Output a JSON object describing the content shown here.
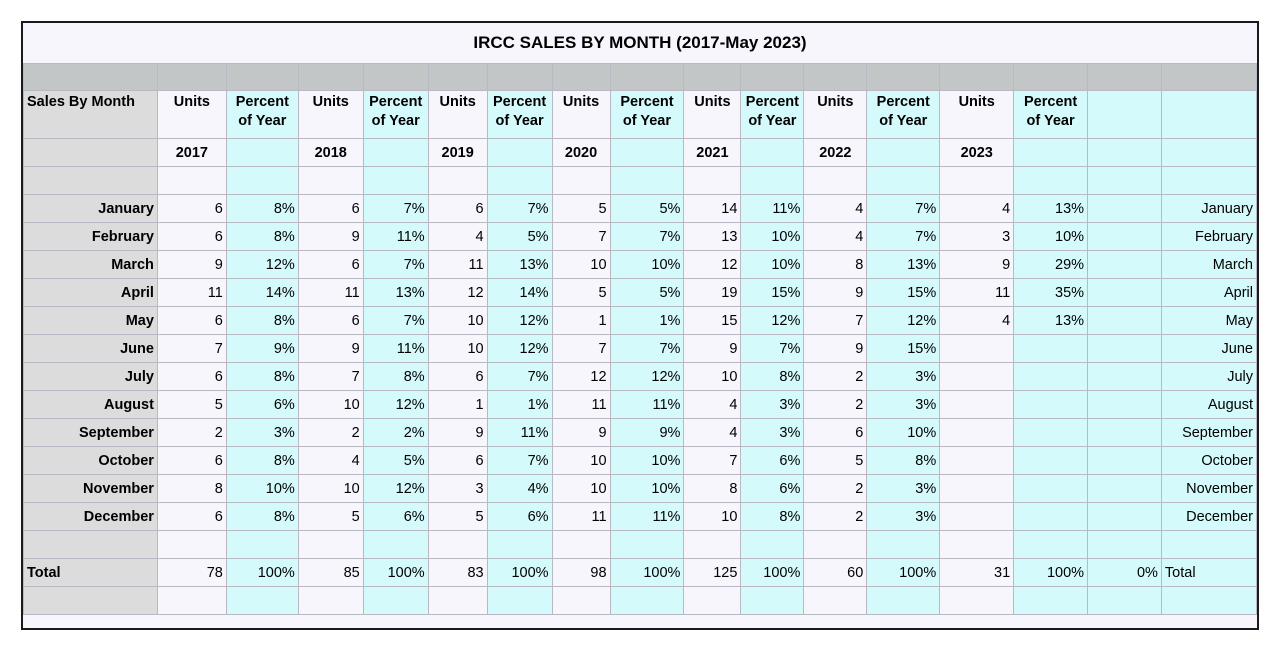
{
  "title": "IRCC SALES BY MONTH (2017-May 2023)",
  "header": {
    "row_label": "Sales By Month",
    "units_label": "Units",
    "percent_label_line1": "Percent",
    "percent_label_line2": "of Year",
    "years": [
      "2017",
      "2018",
      "2019",
      "2020",
      "2021",
      "2022",
      "2023"
    ]
  },
  "rows": [
    {
      "month": "January",
      "values": [
        "6",
        "8%",
        "6",
        "7%",
        "6",
        "7%",
        "5",
        "5%",
        "14",
        "11%",
        "4",
        "7%",
        "4",
        "13%"
      ]
    },
    {
      "month": "February",
      "values": [
        "6",
        "8%",
        "9",
        "11%",
        "4",
        "5%",
        "7",
        "7%",
        "13",
        "10%",
        "4",
        "7%",
        "3",
        "10%"
      ]
    },
    {
      "month": "March",
      "values": [
        "9",
        "12%",
        "6",
        "7%",
        "11",
        "13%",
        "10",
        "10%",
        "12",
        "10%",
        "8",
        "13%",
        "9",
        "29%"
      ]
    },
    {
      "month": "April",
      "values": [
        "11",
        "14%",
        "11",
        "13%",
        "12",
        "14%",
        "5",
        "5%",
        "19",
        "15%",
        "9",
        "15%",
        "11",
        "35%"
      ]
    },
    {
      "month": "May",
      "values": [
        "6",
        "8%",
        "6",
        "7%",
        "10",
        "12%",
        "1",
        "1%",
        "15",
        "12%",
        "7",
        "12%",
        "4",
        "13%"
      ]
    },
    {
      "month": "June",
      "values": [
        "7",
        "9%",
        "9",
        "11%",
        "10",
        "12%",
        "7",
        "7%",
        "9",
        "7%",
        "9",
        "15%",
        "",
        ""
      ]
    },
    {
      "month": "July",
      "values": [
        "6",
        "8%",
        "7",
        "8%",
        "6",
        "7%",
        "12",
        "12%",
        "10",
        "8%",
        "2",
        "3%",
        "",
        ""
      ]
    },
    {
      "month": "August",
      "values": [
        "5",
        "6%",
        "10",
        "12%",
        "1",
        "1%",
        "11",
        "11%",
        "4",
        "3%",
        "2",
        "3%",
        "",
        ""
      ]
    },
    {
      "month": "September",
      "values": [
        "2",
        "3%",
        "2",
        "2%",
        "9",
        "11%",
        "9",
        "9%",
        "4",
        "3%",
        "6",
        "10%",
        "",
        ""
      ]
    },
    {
      "month": "October",
      "values": [
        "6",
        "8%",
        "4",
        "5%",
        "6",
        "7%",
        "10",
        "10%",
        "7",
        "6%",
        "5",
        "8%",
        "",
        ""
      ]
    },
    {
      "month": "November",
      "values": [
        "8",
        "10%",
        "10",
        "12%",
        "3",
        "4%",
        "10",
        "10%",
        "8",
        "6%",
        "2",
        "3%",
        "",
        ""
      ]
    },
    {
      "month": "December",
      "values": [
        "6",
        "8%",
        "5",
        "6%",
        "5",
        "6%",
        "11",
        "11%",
        "10",
        "8%",
        "2",
        "3%",
        "",
        ""
      ]
    }
  ],
  "total": {
    "label": "Total",
    "values": [
      "78",
      "100%",
      "85",
      "100%",
      "83",
      "100%",
      "98",
      "100%",
      "125",
      "100%",
      "60",
      "100%",
      "31",
      "100%"
    ],
    "extra_percent": "0%",
    "right_label": "Total"
  }
}
